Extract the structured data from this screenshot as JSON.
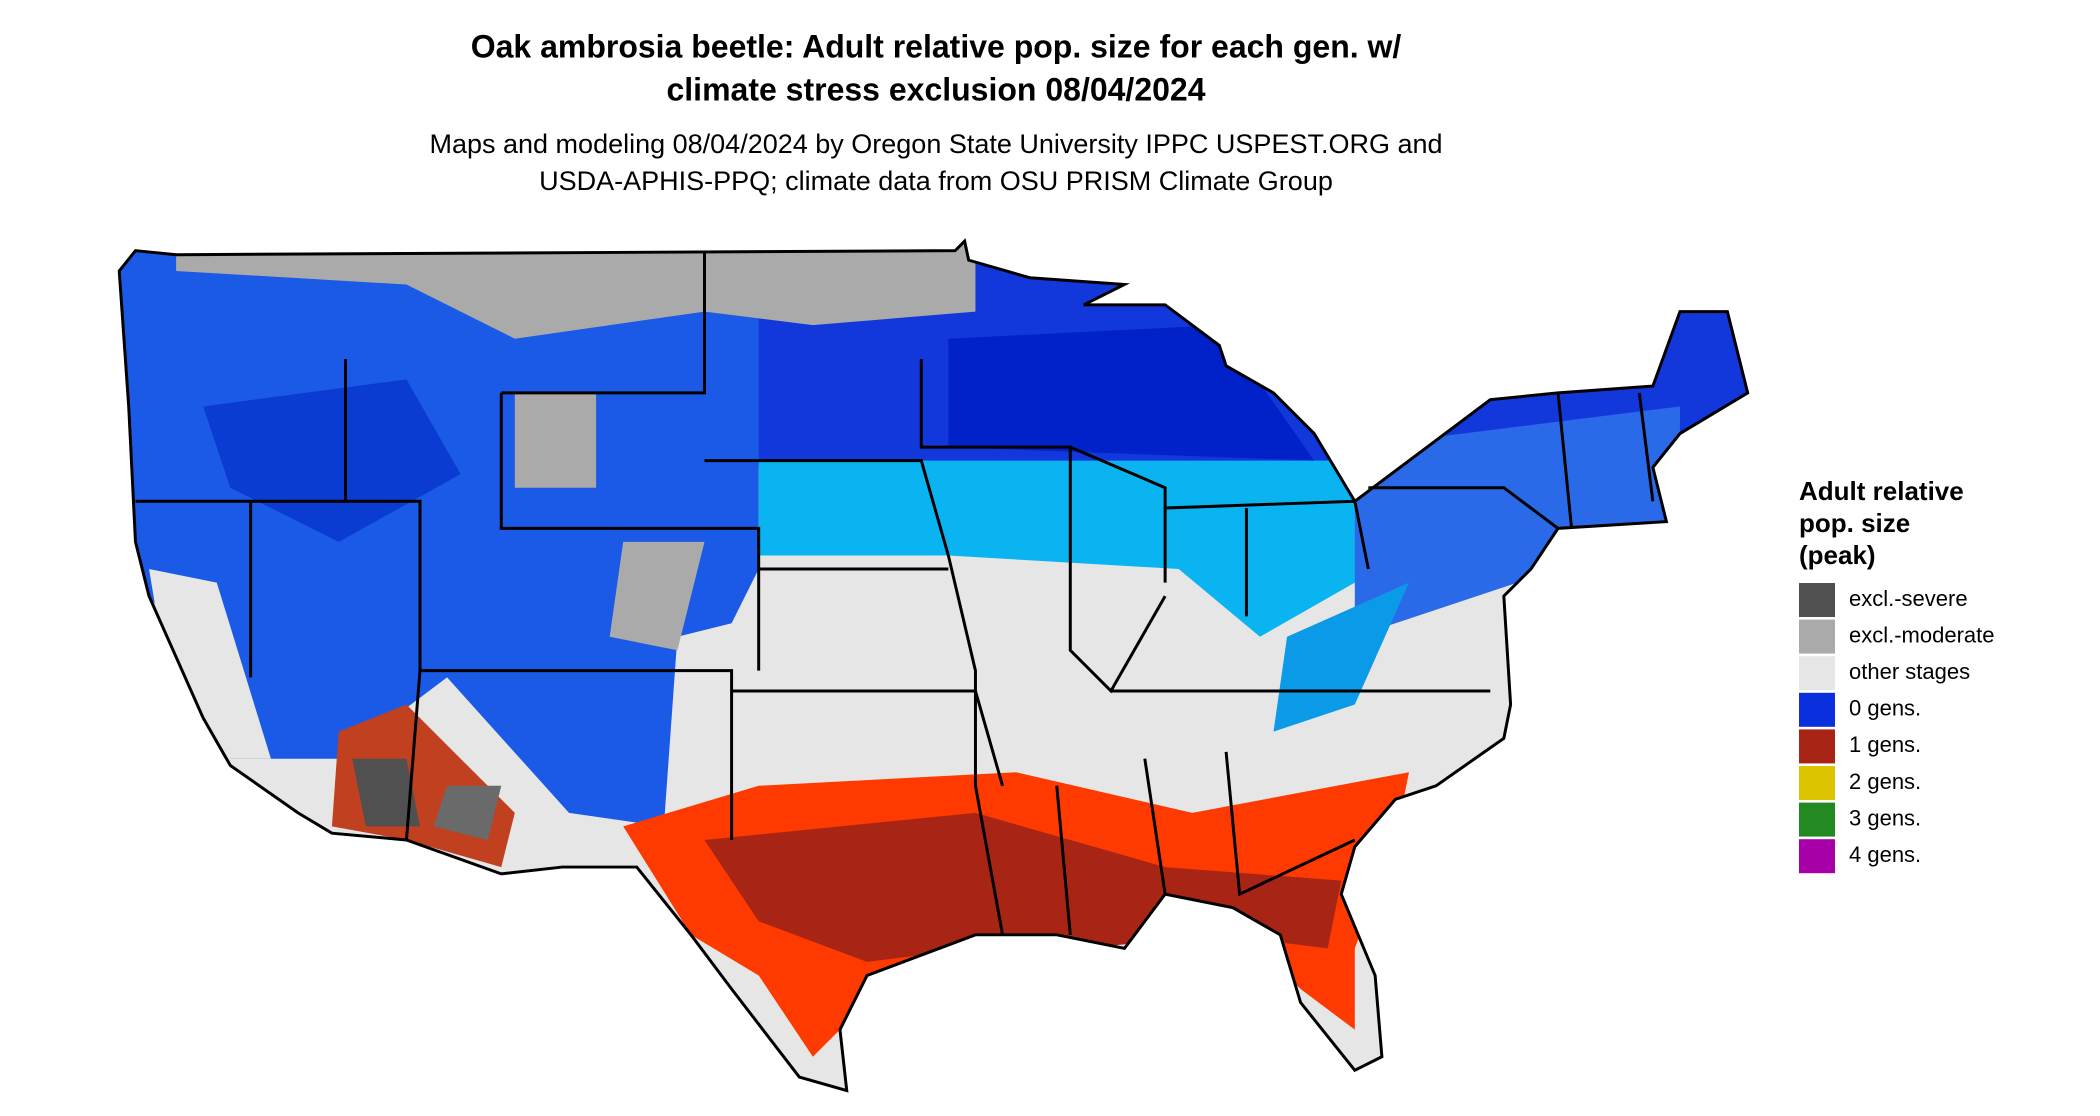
{
  "title": [
    "Oak ambrosia beetle: Adult relative pop. size for each gen. w/",
    "climate stress exclusion 08/04/2024"
  ],
  "subtitle": [
    "Maps and modeling 08/04/2024 by Oregon State University IPPC USPEST.ORG and",
    "USDA-APHIS-PPQ; climate data from OSU PRISM Climate Group"
  ],
  "legend": {
    "title": [
      "Adult relative",
      "pop. size",
      "(peak)"
    ],
    "items": [
      {
        "label": "excl.-severe",
        "color": "#505050"
      },
      {
        "label": "excl.-moderate",
        "color": "#aaaaaa"
      },
      {
        "label": "other stages",
        "color": "#e6e6e6"
      },
      {
        "label": "0 gens.",
        "color": "#0a2fdc"
      },
      {
        "label": "1 gens.",
        "color": "#a82414"
      },
      {
        "label": "2 gens.",
        "color": "#dcc400"
      },
      {
        "label": "3 gens.",
        "color": "#238a22"
      },
      {
        "label": "4 gens.",
        "color": "#a800a8"
      }
    ]
  }
}
